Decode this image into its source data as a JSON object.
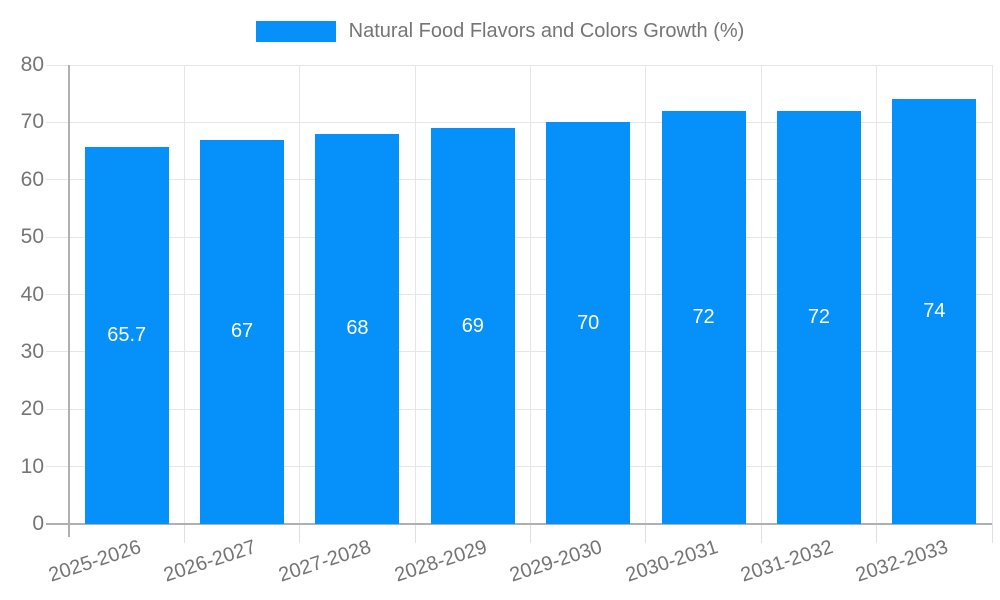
{
  "legend": {
    "label": "Natural Food Flavors and Colors Growth (%)"
  },
  "chart_data": {
    "type": "bar",
    "title": "Natural Food Flavors and Colors Growth (%)",
    "categories": [
      "2025-2026",
      "2026-2027",
      "2027-2028",
      "2028-2029",
      "2029-2030",
      "2030-2031",
      "2031-2032",
      "2032-2033"
    ],
    "values": [
      65.7,
      67,
      68,
      69,
      70,
      72,
      72,
      74
    ],
    "value_labels": [
      "65.7",
      "67",
      "68",
      "69",
      "70",
      "72",
      "72",
      "74"
    ],
    "xlabel": "",
    "ylabel": "",
    "ylim": [
      0,
      80
    ],
    "yticks": [
      0,
      10,
      20,
      30,
      40,
      50,
      60,
      70,
      80
    ],
    "ytick_labels": [
      "0",
      "10",
      "20",
      "30",
      "40",
      "50",
      "60",
      "70",
      "80"
    ],
    "grid": true,
    "legend_position": "top",
    "colors": {
      "bar": "#0690FA",
      "bar_value_text": "#ffffff",
      "axis_text": "#757575",
      "grid_line": "#e6e6e6",
      "tick_line": "#e0e0e0",
      "axis_line": "#b0b0b0",
      "background": "#ffffff"
    }
  }
}
